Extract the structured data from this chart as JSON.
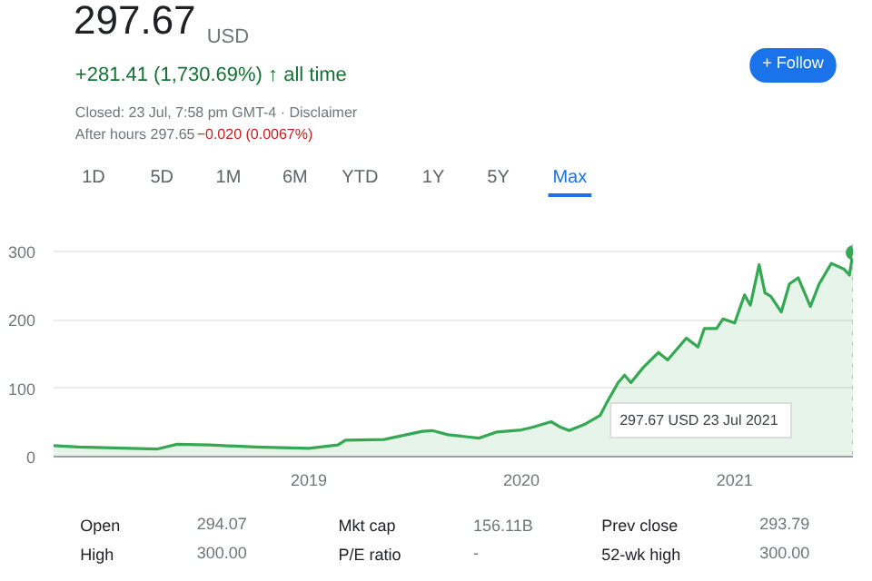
{
  "chart_data": {
    "type": "area",
    "title": "297.67",
    "annotations": [
      "USD",
      "+281.41 (1,730.69%) ↑ all time",
      "Closed: 23 Jul, 7:58 pm GMT-4 · Disclaimer",
      "After hours 297.65",
      "−0.020 (0.0067%)",
      "+ Follow",
      "1D",
      "5D",
      "1M",
      "6M",
      "YTD",
      "1Y",
      "5Y",
      "Max",
      "Open",
      "294.07",
      "Mkt cap",
      "156.11B",
      "Prev close",
      "293.79",
      "High",
      "300.00",
      "P/E ratio",
      "-",
      "52-wk high",
      "300.00",
      "297.67 USD  23 Jul 2021"
    ],
    "x": [
      "2017-10-20",
      "2017-12-01",
      "2018-03-01",
      "2018-04-15",
      "2018-05-20",
      "2018-07-15",
      "2018-10-01",
      "2019-01-01",
      "2019-02-20",
      "2019-03-05",
      "2019-05-10",
      "2019-07-15",
      "2019-08-01",
      "2019-08-28",
      "2019-10-20",
      "2019-11-20",
      "2020-01-01",
      "2020-01-21",
      "2020-02-21",
      "2020-03-08",
      "2020-03-23",
      "2020-04-18",
      "2020-05-15",
      "2020-05-26",
      "2020-06-15",
      "2020-06-26",
      "2020-07-07",
      "2020-07-28",
      "2020-08-23",
      "2020-09-08",
      "2020-10-10",
      "2020-10-30",
      "2020-11-10",
      "2020-12-01",
      "2020-12-12",
      "2021-01-01",
      "2021-01-18",
      "2021-01-28",
      "2021-02-12",
      "2021-02-22",
      "2021-03-04",
      "2021-03-22",
      "2021-04-05",
      "2021-04-20",
      "2021-05-11",
      "2021-05-26",
      "2021-06-16",
      "2021-07-07",
      "2021-07-17",
      "2021-07-23"
    ],
    "series": [
      {
        "color": "#34a853",
        "values": [
          16,
          14,
          12,
          11,
          18,
          17,
          14,
          12,
          17,
          24,
          25,
          37,
          38,
          32,
          27,
          36,
          39,
          43,
          51,
          43,
          38,
          47,
          60,
          78,
          108,
          119,
          108,
          130,
          152,
          141,
          173,
          160,
          187,
          187,
          201,
          195,
          236,
          221,
          280,
          239,
          234,
          211,
          252,
          261,
          219,
          252,
          282,
          274,
          265,
          297.67
        ]
      },
      {
        "type": "scatter",
        "marker": "circle",
        "color": "#34a853",
        "x": [
          "2021-07-23"
        ],
        "values": [
          297.67
        ]
      }
    ],
    "xlim": [
      "2017-10-20",
      "2021-07-23"
    ],
    "ylim": [
      0,
      310
    ],
    "xticks": [
      "2019",
      "2020",
      "2021"
    ],
    "yticks": [
      0,
      100,
      200,
      300
    ],
    "grid": "y",
    "line_style": "solid",
    "marker": "none",
    "ref_lines": [
      {
        "axis": "x",
        "value": "2021-07-23",
        "label": null,
        "line_style": "dotted",
        "color": "#bdc1c6"
      }
    ]
  }
}
